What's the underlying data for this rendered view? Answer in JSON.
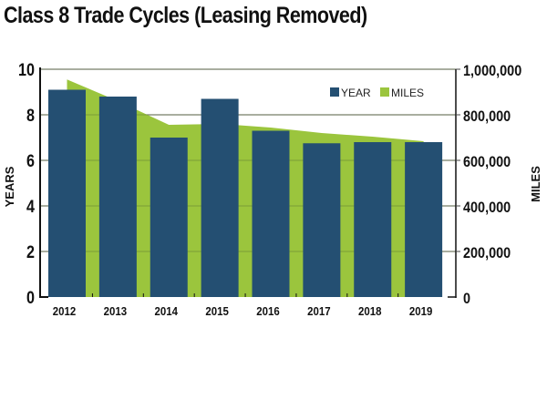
{
  "chart_data": {
    "type": "bar",
    "title": "Class 8 Trade Cycles (Leasing Removed)",
    "categories": [
      "2012",
      "2013",
      "2014",
      "2015",
      "2016",
      "2017",
      "2018",
      "2019"
    ],
    "series": [
      {
        "name": "YEAR",
        "type": "bar",
        "axis": "left",
        "color": "#244f72",
        "values": [
          9.1,
          8.8,
          7.0,
          8.7,
          7.3,
          6.75,
          6.8,
          6.8
        ]
      },
      {
        "name": "MILES",
        "type": "area",
        "axis": "right",
        "color": "#9bc53d",
        "values": [
          955000,
          860000,
          756000,
          760000,
          744000,
          720000,
          704000,
          684000
        ]
      }
    ],
    "ylabel": "YEARS",
    "ylim": [
      0,
      10
    ],
    "yticks": [
      "0",
      "2",
      "4",
      "6",
      "8",
      "10"
    ],
    "y2label": "MILES",
    "y2lim": [
      0,
      1000000
    ],
    "y2ticks": [
      "0",
      "200,000",
      "400,000",
      "600,000",
      "800,000",
      "1,000,000"
    ],
    "grid": true,
    "legend": {
      "position": "top-right",
      "entries": [
        "YEAR",
        "MILES"
      ]
    }
  }
}
